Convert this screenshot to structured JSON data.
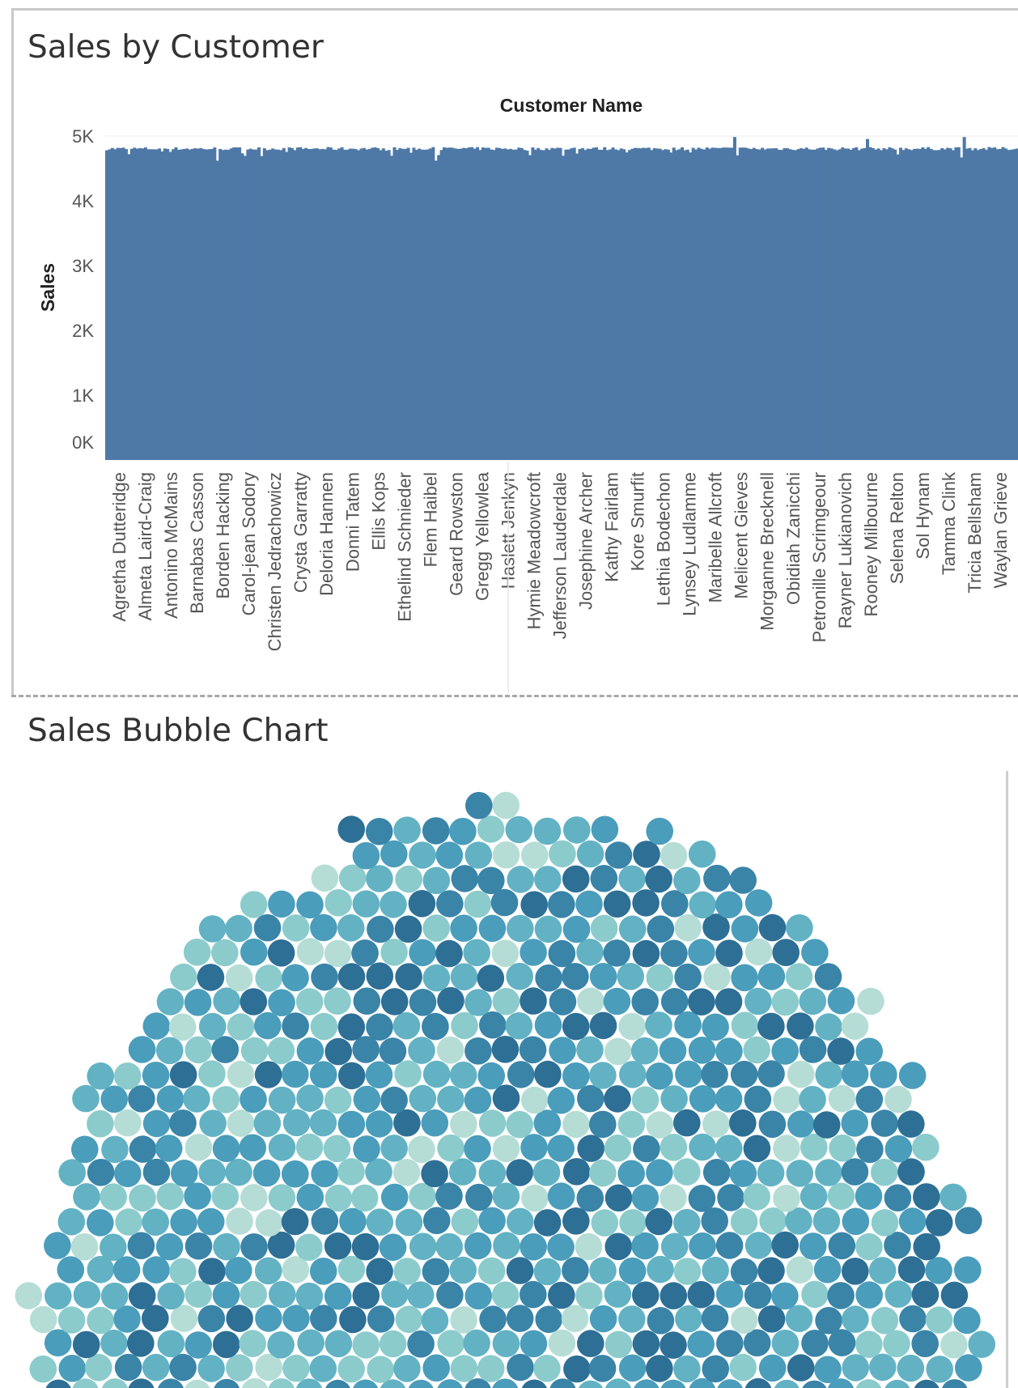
{
  "chart_data": [
    {
      "type": "bar",
      "title": "Sales by Customer",
      "column_header": "Customer Name",
      "ylabel": "Sales",
      "ylim": [
        0,
        5000
      ],
      "yticks": [
        "0K",
        "1K",
        "2K",
        "3K",
        "4K",
        "5K"
      ],
      "ytick_values": [
        0,
        1000,
        2000,
        3000,
        4000,
        5000
      ],
      "bar_color": "#4e79a7",
      "bar_count": 330,
      "typical_value": 4800,
      "max_value": 4985,
      "min_value": 4620,
      "labeled_categories": [
        "Agretha Dutteridge",
        "Almeta Laird-Craig",
        "Antonino McMains",
        "Barnabas Casson",
        "Borden Hacking",
        "Carol-jean Sodory",
        "Christen Jedrachowicz",
        "Crysta Garratty",
        "Deloria Hannen",
        "Donni Tatem",
        "Ellis Kops",
        "Ethelind Schnieder",
        "Flem Haibel",
        "Geard Rowston",
        "Gregg Yellowlea",
        "Haslett Jenkyn",
        "Hymie Meadowcroft",
        "Jefferson Lauderdale",
        "Josephine Archer",
        "Kathy Fairlam",
        "Kore Smurfit",
        "Lethia Bodechon",
        "Lynsey Ludlamme",
        "Maribelle Allcroft",
        "Melicent Gieves",
        "Morganne Brecknell",
        "Obidiah Zanicchi",
        "Petronille Scrimgeour",
        "Rayner Lukianovich",
        "Rooney Milbourne",
        "Selena Relton",
        "Sol Hynam",
        "Tamma Clink",
        "Tricia Bellsham",
        "Waylan Grieve"
      ]
    },
    {
      "type": "bubble",
      "title": "Sales Bubble Chart",
      "color_palette": [
        "#2e6f95",
        "#3a84a8",
        "#4a9dbb",
        "#62b2c4",
        "#8ccbcc",
        "#b5ddd6"
      ]
    }
  ]
}
